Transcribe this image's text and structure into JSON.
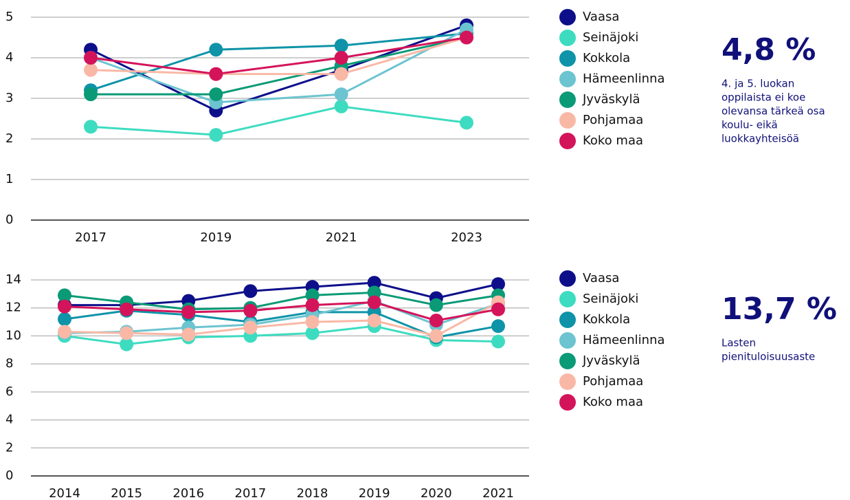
{
  "chart_data": [
    {
      "type": "line",
      "categories": [
        "2017",
        "2019",
        "2021",
        "2023"
      ],
      "ylim": [
        0,
        5
      ],
      "yticks": [
        0,
        1,
        2,
        3,
        4,
        5
      ],
      "grid": true,
      "series": [
        {
          "name": "Vaasa",
          "color": "#0d0f8a",
          "values": [
            4.2,
            2.7,
            3.7,
            4.8
          ]
        },
        {
          "name": "Seinäjoki",
          "color": "#3ddcc0",
          "values": [
            2.3,
            2.1,
            2.8,
            2.4
          ]
        },
        {
          "name": "Kokkola",
          "color": "#0e93a8",
          "values": [
            3.2,
            4.2,
            4.3,
            4.6
          ]
        },
        {
          "name": "Hämeenlinna",
          "color": "#6cc4d0",
          "values": [
            4.0,
            2.9,
            3.1,
            4.7
          ]
        },
        {
          "name": "Jyväskylä",
          "color": "#0a9a76",
          "values": [
            3.1,
            3.1,
            3.8,
            4.5
          ]
        },
        {
          "name": "Pohjamaa",
          "color": "#f9b8a6",
          "values": [
            3.7,
            3.6,
            3.6,
            4.5
          ]
        },
        {
          "name": "Koko maa",
          "color": "#d4145a",
          "values": [
            4.0,
            3.6,
            4.0,
            4.5
          ]
        }
      ]
    },
    {
      "type": "line",
      "categories": [
        "2014",
        "2015",
        "2016",
        "2017",
        "2018",
        "2019",
        "2020",
        "2021"
      ],
      "ylim": [
        0,
        14
      ],
      "yticks": [
        0,
        2,
        4,
        6,
        8,
        10,
        12,
        14
      ],
      "grid": true,
      "series": [
        {
          "name": "Vaasa",
          "color": "#0d0f8a",
          "values": [
            12.2,
            12.2,
            12.5,
            13.2,
            13.5,
            13.8,
            12.7,
            13.7
          ]
        },
        {
          "name": "Seinäjoki",
          "color": "#3ddcc0",
          "values": [
            10.0,
            9.4,
            9.9,
            10.0,
            10.2,
            10.7,
            9.7,
            9.6
          ]
        },
        {
          "name": "Kokkola",
          "color": "#0e93a8",
          "values": [
            11.2,
            11.8,
            11.5,
            11.0,
            11.7,
            11.7,
            9.9,
            10.7
          ]
        },
        {
          "name": "Hämeenlinna",
          "color": "#6cc4d0",
          "values": [
            10.2,
            10.3,
            10.6,
            10.8,
            11.5,
            12.5,
            10.8,
            12.3
          ]
        },
        {
          "name": "Jyväskylä",
          "color": "#0a9a76",
          "values": [
            12.9,
            12.4,
            11.9,
            12.0,
            12.9,
            13.1,
            12.2,
            12.9
          ]
        },
        {
          "name": "Pohjamaa",
          "color": "#f9b8a6",
          "values": [
            10.3,
            10.2,
            10.1,
            10.6,
            11.0,
            11.1,
            10.0,
            12.4
          ]
        },
        {
          "name": "Koko maa",
          "color": "#d4145a",
          "values": [
            12.1,
            11.9,
            11.7,
            11.8,
            12.2,
            12.4,
            11.1,
            11.9
          ]
        }
      ]
    }
  ],
  "stats": [
    {
      "value": "4,8 %",
      "lines": [
        "4. ja 5. luokan",
        "oppilaista ei koe",
        "olevansa tärkeä osa",
        "koulu- eikä",
        "luokkayhteisöä"
      ]
    },
    {
      "value": "13,7 %",
      "lines": [
        "Lasten",
        "pienituloisuusaste"
      ]
    }
  ]
}
